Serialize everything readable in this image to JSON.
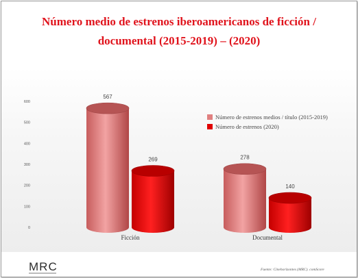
{
  "title_line1": "Número medio de estrenos iberoamericanos de ficción /",
  "title_line2": "documental (2015-2019) – (2020)",
  "source": "Fuente: Cinehorizontes (MRC). comScore",
  "logo": "MRC",
  "colors": {
    "series1": "#e08080",
    "series2": "#e00000",
    "title": "#e0131c"
  },
  "chart_data": {
    "type": "bar",
    "categories": [
      "Ficción",
      "Documental"
    ],
    "series": [
      {
        "name": "Número de estrenos medios / título (2015-2019)",
        "values": [
          567,
          278
        ]
      },
      {
        "name": "Número de estrenos (2020)",
        "values": [
          269,
          140
        ]
      }
    ],
    "yticks": [
      0,
      100,
      200,
      300,
      400,
      500,
      600
    ],
    "ylim": [
      0,
      600
    ],
    "grid": false,
    "legend_position": "right",
    "style": "3d-cylinder"
  }
}
